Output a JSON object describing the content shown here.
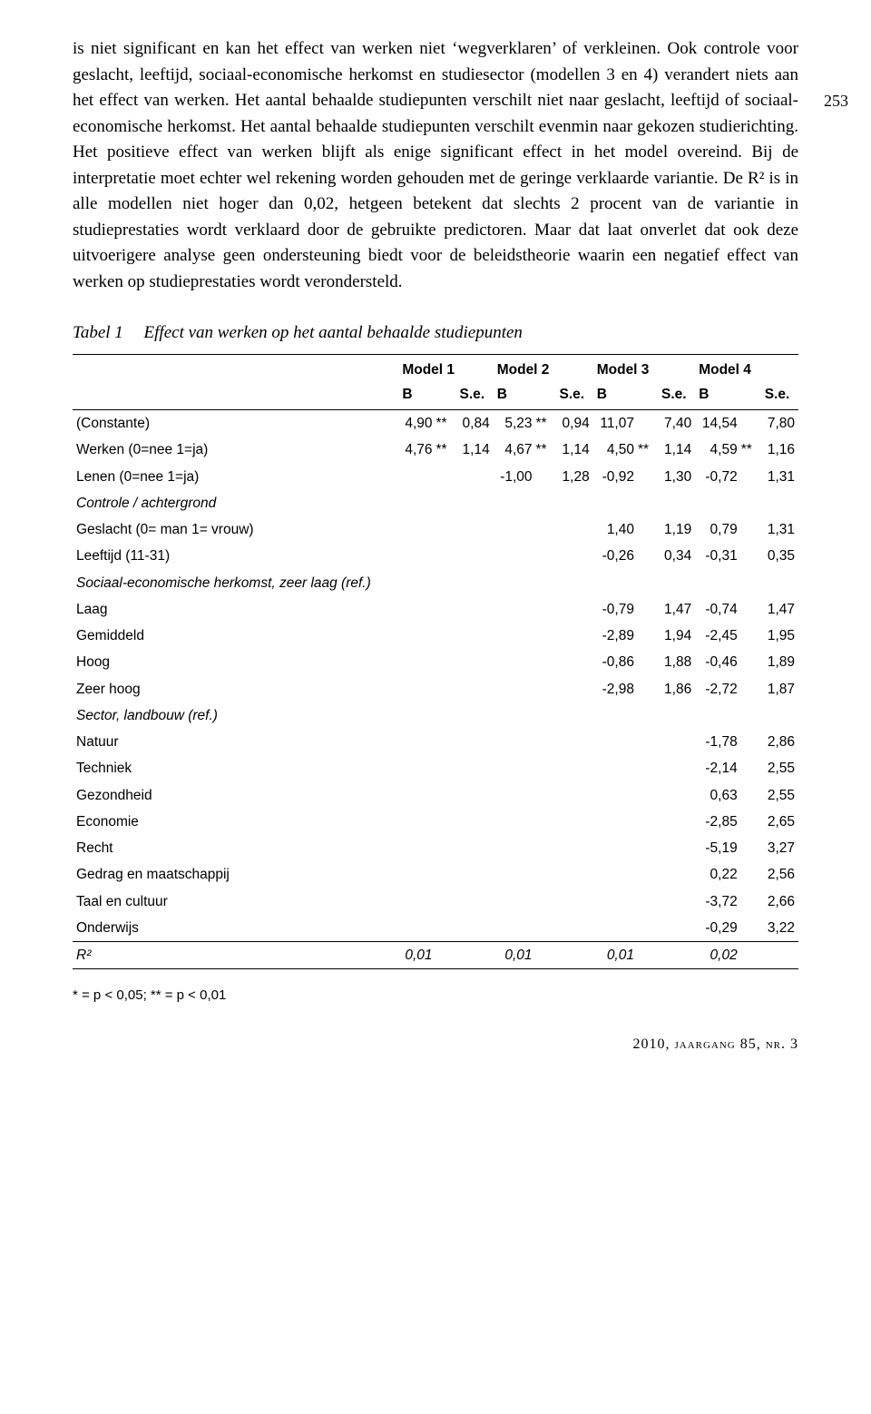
{
  "page_margin_number": "253",
  "body_paragraph": "is niet significant en kan het effect van werken niet ‘wegverklaren’ of verkleinen. Ook controle voor geslacht, leeftijd, sociaal-economische herkomst en studiesector (modellen 3 en 4) verandert niets aan het effect van werken. Het aantal behaalde studiepunten verschilt niet naar geslacht, leeftijd of sociaal-economische herkomst. Het aantal behaalde studiepunten verschilt evenmin naar gekozen studierichting. Het positieve effect van werken blijft als enige significant effect in het model overeind. Bij de interpretatie moet echter wel rekening worden gehouden met de geringe verklaarde variantie. De R² is in alle modellen niet hoger dan 0,02, hetgeen betekent dat slechts 2 procent van de variantie in studieprestaties wordt verklaard door de gebruikte predictoren. Maar dat laat onverlet dat ook deze uitvoerigere analyse geen ondersteuning biedt voor de beleidstheorie waarin een negatief effect van werken op studieprestaties wordt verondersteld.",
  "table": {
    "label": "Tabel 1",
    "caption": "Effect van werken op het aantal behaalde studiepunten",
    "model_headers": [
      "Model 1",
      "Model 2",
      "Model 3",
      "Model 4"
    ],
    "sub_headers": [
      "B",
      "S.e.",
      "B",
      "S.e.",
      "B",
      "S.e.",
      "B",
      "S.e."
    ],
    "rows": [
      {
        "label": "(Constante)",
        "vals": [
          "4,90",
          "**",
          "0,84",
          "5,23",
          "**",
          "0,94",
          "11,07",
          "",
          "7,40",
          "14,54",
          "",
          "7,80"
        ]
      },
      {
        "label": "Werken (0=nee 1=ja)",
        "vals": [
          "4,76",
          "**",
          "1,14",
          "4,67",
          "**",
          "1,14",
          "4,50",
          "**",
          "1,14",
          "4,59",
          "**",
          "1,16"
        ]
      },
      {
        "label": "Lenen (0=nee 1=ja)",
        "vals": [
          "",
          "",
          "",
          "-1,00",
          "",
          "1,28",
          "-0,92",
          "",
          "1,30",
          "-0,72",
          "",
          "1,31"
        ]
      },
      {
        "label": "Controle / achtergrond",
        "italic": true,
        "vals": [
          "",
          "",
          "",
          "",
          "",
          "",
          "",
          "",
          "",
          "",
          "",
          ""
        ]
      },
      {
        "label": "Geslacht (0= man 1= vrouw)",
        "vals": [
          "",
          "",
          "",
          "",
          "",
          "",
          "1,40",
          "",
          "1,19",
          "0,79",
          "",
          "1,31"
        ]
      },
      {
        "label": "Leeftijd (11-31)",
        "vals": [
          "",
          "",
          "",
          "",
          "",
          "",
          "-0,26",
          "",
          "0,34",
          "-0,31",
          "",
          "0,35"
        ]
      },
      {
        "label": "Sociaal-economische herkomst, zeer laag (ref.)",
        "italic": true,
        "vals": [
          "",
          "",
          "",
          "",
          "",
          "",
          "",
          "",
          "",
          "",
          "",
          ""
        ]
      },
      {
        "label": "Laag",
        "vals": [
          "",
          "",
          "",
          "",
          "",
          "",
          "-0,79",
          "",
          "1,47",
          "-0,74",
          "",
          "1,47"
        ]
      },
      {
        "label": "Gemiddeld",
        "vals": [
          "",
          "",
          "",
          "",
          "",
          "",
          "-2,89",
          "",
          "1,94",
          "-2,45",
          "",
          "1,95"
        ]
      },
      {
        "label": "Hoog",
        "vals": [
          "",
          "",
          "",
          "",
          "",
          "",
          "-0,86",
          "",
          "1,88",
          "-0,46",
          "",
          "1,89"
        ]
      },
      {
        "label": "Zeer hoog",
        "vals": [
          "",
          "",
          "",
          "",
          "",
          "",
          "-2,98",
          "",
          "1,86",
          "-2,72",
          "",
          "1,87"
        ]
      },
      {
        "label": "Sector, landbouw (ref.)",
        "italic": true,
        "vals": [
          "",
          "",
          "",
          "",
          "",
          "",
          "",
          "",
          "",
          "",
          "",
          ""
        ]
      },
      {
        "label": "Natuur",
        "vals": [
          "",
          "",
          "",
          "",
          "",
          "",
          "",
          "",
          "",
          "-1,78",
          "",
          "2,86"
        ]
      },
      {
        "label": "Techniek",
        "vals": [
          "",
          "",
          "",
          "",
          "",
          "",
          "",
          "",
          "",
          "-2,14",
          "",
          "2,55"
        ]
      },
      {
        "label": "Gezondheid",
        "vals": [
          "",
          "",
          "",
          "",
          "",
          "",
          "",
          "",
          "",
          "0,63",
          "",
          "2,55"
        ]
      },
      {
        "label": "Economie",
        "vals": [
          "",
          "",
          "",
          "",
          "",
          "",
          "",
          "",
          "",
          "-2,85",
          "",
          "2,65"
        ]
      },
      {
        "label": "Recht",
        "vals": [
          "",
          "",
          "",
          "",
          "",
          "",
          "",
          "",
          "",
          "-5,19",
          "",
          "3,27"
        ]
      },
      {
        "label": "Gedrag en maatschappij",
        "vals": [
          "",
          "",
          "",
          "",
          "",
          "",
          "",
          "",
          "",
          "0,22",
          "",
          "2,56"
        ]
      },
      {
        "label": "Taal en cultuur",
        "vals": [
          "",
          "",
          "",
          "",
          "",
          "",
          "",
          "",
          "",
          "-3,72",
          "",
          "2,66"
        ]
      },
      {
        "label": "Onderwijs",
        "vals": [
          "",
          "",
          "",
          "",
          "",
          "",
          "",
          "",
          "",
          "-0,29",
          "",
          "3,22"
        ]
      }
    ],
    "r2_row": {
      "label": "R²",
      "vals": [
        "0,01",
        "",
        "",
        "0,01",
        "",
        "",
        "0,01",
        "",
        "",
        "0,02",
        "",
        ""
      ]
    }
  },
  "footnote": "* = p < 0,05; ** = p < 0,01",
  "footer": "2010, jaargang 85, nr. 3"
}
